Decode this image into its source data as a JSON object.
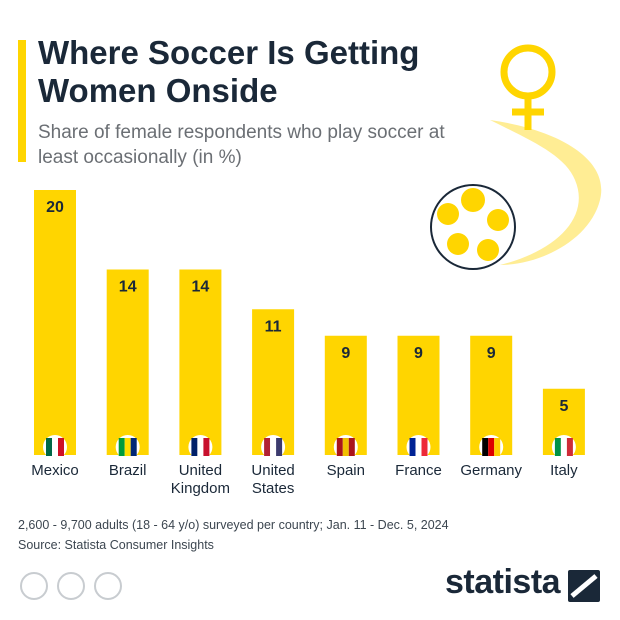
{
  "chart_data": {
    "type": "bar",
    "title": "Where Soccer Is Getting Women Onside",
    "subtitle": "Share of female respondents who play soccer at least occasionally (in %)",
    "categories": [
      "Mexico",
      "Brazil",
      "United Kingdom",
      "United States",
      "Spain",
      "France",
      "Germany",
      "Italy"
    ],
    "values": [
      20,
      14,
      14,
      11,
      9,
      9,
      9,
      5
    ],
    "color": "#ffd500",
    "note": "2,600 - 9,700 adults (18 - 64 y/o) surveyed per country; Jan. 11 - Dec. 5, 2024",
    "source": "Source: Statista Consumer Insights",
    "logo": "statista"
  }
}
